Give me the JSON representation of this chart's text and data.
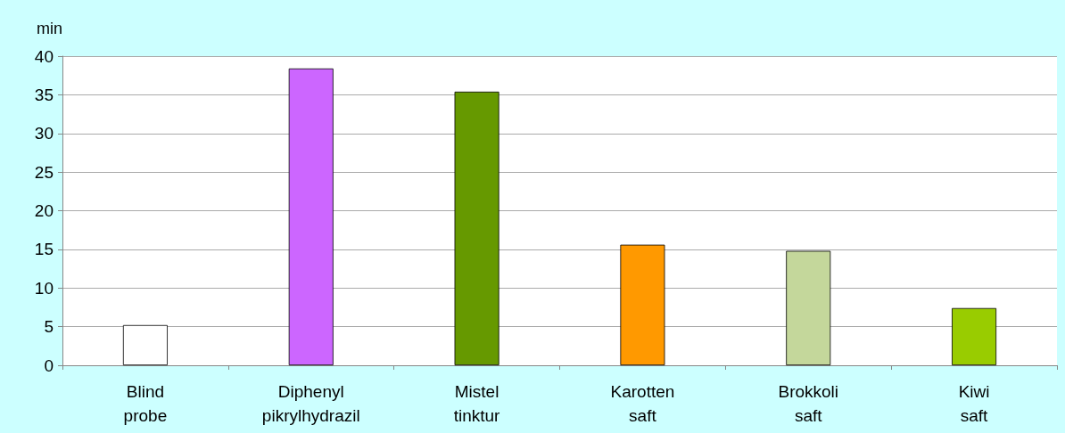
{
  "chart_data": {
    "type": "bar",
    "ylabel": "min",
    "categories": [
      "Blind\nprobe",
      "Diphenyl\npikrylhydrazil",
      "Mistel\ntinktur",
      "Karotten\nsaft",
      "Brokkoli\nsaft",
      "Kiwi\nsaft"
    ],
    "values": [
      5.2,
      38.4,
      35.4,
      15.6,
      14.8,
      7.4
    ],
    "colors": [
      "#ffffff",
      "#cc66ff",
      "#669900",
      "#ff9900",
      "#c4d79b",
      "#99cc00"
    ],
    "ylim": [
      0,
      40
    ],
    "yticks": [
      0,
      5,
      10,
      15,
      20,
      25,
      30,
      35,
      40
    ],
    "grid": "y"
  }
}
